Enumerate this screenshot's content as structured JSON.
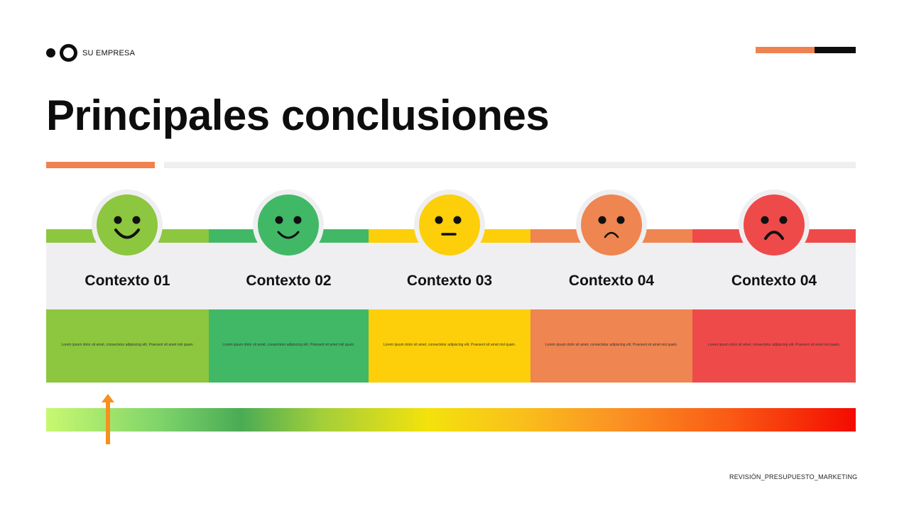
{
  "header": {
    "company": "SU EMPRESA",
    "title": "Principales conclusiones"
  },
  "colors": {
    "accent_orange": "#ef8250",
    "dark": "#0d0d0d",
    "light_gray": "#efeff1"
  },
  "columns": [
    {
      "title": "Contexto 01",
      "text": "Lorem ipsum dolor sit amet, consectetur adipiscing elit. Praesent sit amet nisl quam.",
      "color": "#8dc63f",
      "face_color": "#8dc63f",
      "icon": "very-happy-face-icon",
      "mood": "very-happy"
    },
    {
      "title": "Contexto 02",
      "text": "Lorem ipsum dolor sit amet, consectetur adipiscing elit. Praesent sit amet nisl quam.",
      "color": "#41b866",
      "face_color": "#41b866",
      "icon": "happy-face-icon",
      "mood": "happy"
    },
    {
      "title": "Contexto 03",
      "text": "Lorem ipsum dolor sit amet, consectetur adipiscing elit. Praesent sit amet nisl quam.",
      "color": "#fccf0a",
      "face_color": "#fccf0a",
      "icon": "neutral-face-icon",
      "mood": "neutral"
    },
    {
      "title": "Contexto 04",
      "text": "Lorem ipsum dolor sit amet, consectetur adipiscing elit. Praesent sit amet nisl quam.",
      "color": "#ef8550",
      "face_color": "#ef8550",
      "icon": "sad-face-icon",
      "mood": "sad"
    },
    {
      "title": "Contexto 04",
      "text": "Lorem ipsum dolor sit amet, consectetur adipiscing elit. Praesent sit amet nisl quam.",
      "color": "#ef4a4a",
      "face_color": "#ef4a4a",
      "icon": "very-sad-face-icon",
      "mood": "very-sad"
    }
  ],
  "scale": {
    "indicator_icon": "arrow-up-icon",
    "indicator_color": "#f7901e"
  },
  "footer": {
    "label": "REVISIÓN_PRESUPUESTO_MARKETING"
  }
}
